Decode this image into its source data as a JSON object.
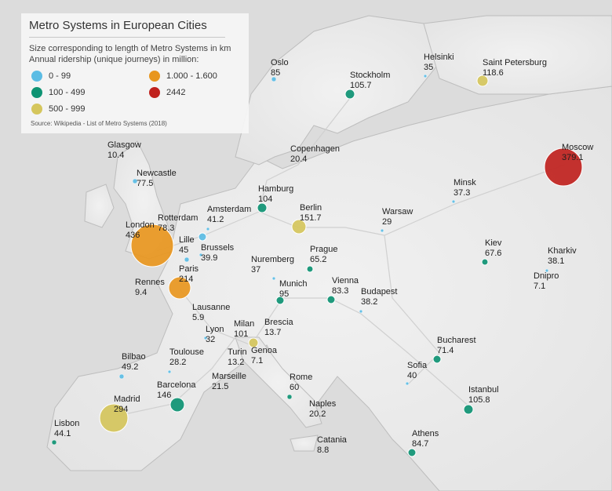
{
  "title": "Metro Systems in European Cities",
  "subtitle_line1": "Size corresponding to length of Metro Systems in km",
  "subtitle_line2": "Annual ridership (unique journeys) in million:",
  "legend": [
    {
      "label": "0 - 99",
      "color": "#5bbce4"
    },
    {
      "label": "1.000 - 1.600",
      "color": "#e8961e"
    },
    {
      "label": "100 - 499",
      "color": "#0e9373"
    },
    {
      "label": "2442",
      "color": "#c0221e"
    },
    {
      "label": "500 - 999",
      "color": "#d5c65c"
    }
  ],
  "source": "Source: Wikipedia - List of Metro Systems (2018)",
  "cities": [
    {
      "name": "Oslo",
      "value": "85"
    },
    {
      "name": "Helsinki",
      "value": "35"
    },
    {
      "name": "Saint Petersburg",
      "value": "118.6"
    },
    {
      "name": "Stockholm",
      "value": "105.7"
    },
    {
      "name": "Glasgow",
      "value": "10.4"
    },
    {
      "name": "Copenhagen",
      "value": "20.4"
    },
    {
      "name": "Moscow",
      "value": "379.1"
    },
    {
      "name": "Newcastle",
      "value": "77.5"
    },
    {
      "name": "Minsk",
      "value": "37.3"
    },
    {
      "name": "Hamburg",
      "value": "104"
    },
    {
      "name": "Amsterdam",
      "value": "41.2"
    },
    {
      "name": "Berlin",
      "value": "151.7"
    },
    {
      "name": "Warsaw",
      "value": "29"
    },
    {
      "name": "Rotterdam",
      "value": "78.3"
    },
    {
      "name": "London",
      "value": "436"
    },
    {
      "name": "Lille",
      "value": "45"
    },
    {
      "name": "Brussels",
      "value": "39.9"
    },
    {
      "name": "Kiev",
      "value": "67.6"
    },
    {
      "name": "Kharkiv",
      "value": "38.1"
    },
    {
      "name": "Nuremberg",
      "value": "37"
    },
    {
      "name": "Prague",
      "value": "65.2"
    },
    {
      "name": "Dnipro",
      "value": "7.1"
    },
    {
      "name": "Paris",
      "value": "214"
    },
    {
      "name": "Rennes",
      "value": "9.4"
    },
    {
      "name": "Munich",
      "value": "95"
    },
    {
      "name": "Vienna",
      "value": "83.3"
    },
    {
      "name": "Budapest",
      "value": "38.2"
    },
    {
      "name": "Lausanne",
      "value": "5.9"
    },
    {
      "name": "Milan",
      "value": "101"
    },
    {
      "name": "Brescia",
      "value": "13.7"
    },
    {
      "name": "Lyon",
      "value": "32"
    },
    {
      "name": "Bucharest",
      "value": "71.4"
    },
    {
      "name": "Toulouse",
      "value": "28.2"
    },
    {
      "name": "Turin",
      "value": "13.2"
    },
    {
      "name": "Genoa",
      "value": "7.1"
    },
    {
      "name": "Bilbao",
      "value": "49.2"
    },
    {
      "name": "Sofia",
      "value": "40"
    },
    {
      "name": "Marseille",
      "value": "21.5"
    },
    {
      "name": "Rome",
      "value": "60"
    },
    {
      "name": "Barcelona",
      "value": "146"
    },
    {
      "name": "Istanbul",
      "value": "105.8"
    },
    {
      "name": "Madrid",
      "value": "294"
    },
    {
      "name": "Naples",
      "value": "20.2"
    },
    {
      "name": "Lisbon",
      "value": "44.1"
    },
    {
      "name": "Athens",
      "value": "84.7"
    },
    {
      "name": "Catania",
      "value": "8.8"
    }
  ]
}
